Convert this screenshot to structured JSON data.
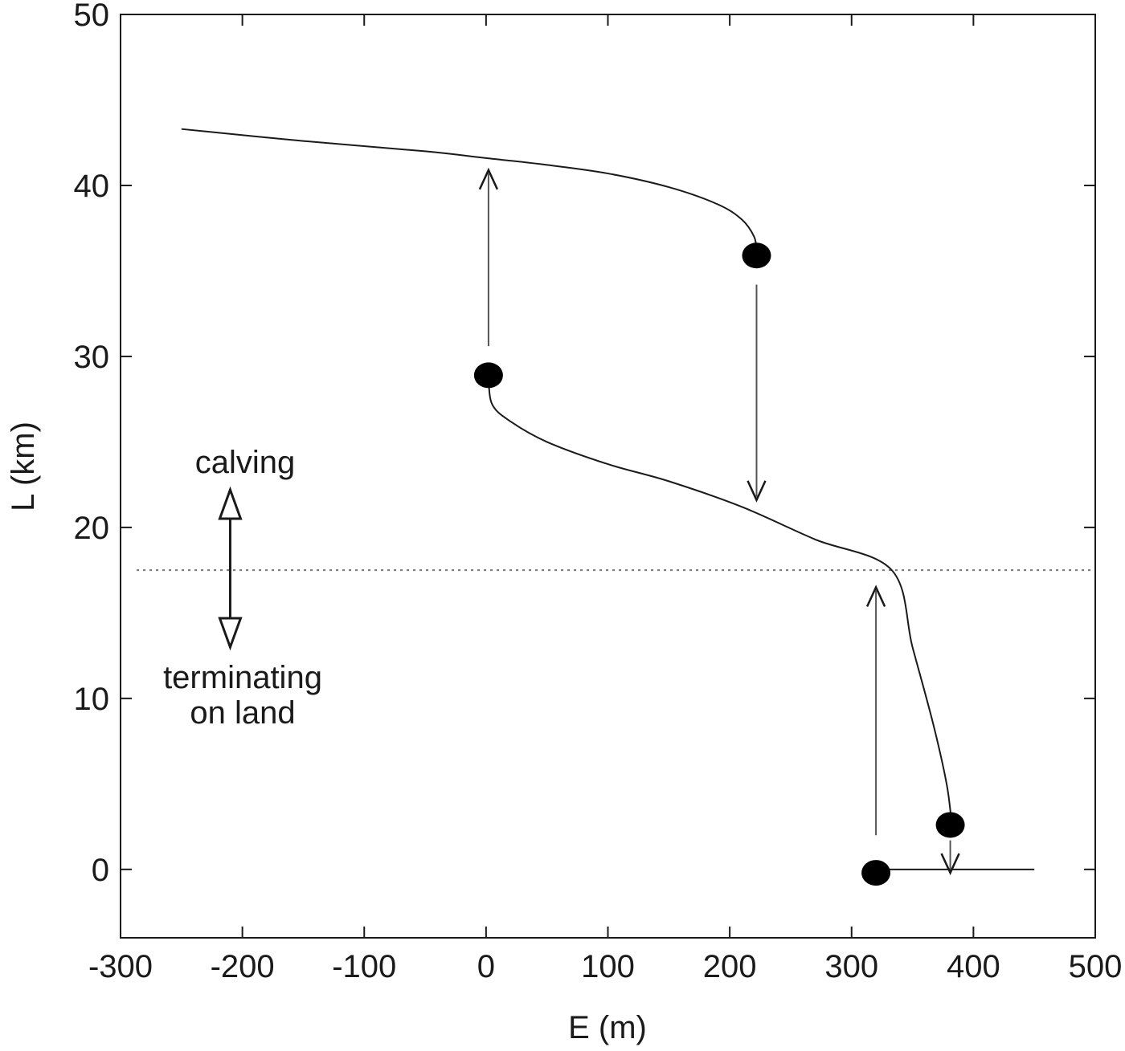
{
  "chart_data": {
    "type": "line",
    "title": "",
    "xlabel": "E (m)",
    "ylabel": "L (km)",
    "xlim": [
      -300,
      500
    ],
    "ylim": [
      -4,
      50
    ],
    "x_ticks": [
      -300,
      -200,
      -100,
      0,
      100,
      200,
      300,
      400,
      500
    ],
    "x_tick_labels": [
      "-300",
      "-200",
      "-100",
      "0",
      "100",
      "200",
      "300",
      "400",
      "500"
    ],
    "y_ticks": [
      0,
      10,
      20,
      30,
      40,
      50
    ],
    "y_tick_labels": [
      "0",
      "10",
      "20",
      "30",
      "40",
      "50"
    ],
    "grid": false,
    "series": [
      {
        "style": "solid",
        "color": "#1a1a1a",
        "points": [
          [
            -250,
            43.3
          ],
          [
            -150,
            42.6
          ],
          [
            -50,
            42.0
          ],
          [
            0,
            41.6
          ],
          [
            50,
            41.2
          ],
          [
            100,
            40.7
          ],
          [
            150,
            39.9
          ],
          [
            190,
            38.9
          ],
          [
            210,
            38.0
          ],
          [
            220,
            37.0
          ],
          [
            222,
            36.2
          ]
        ]
      },
      {
        "style": "solid",
        "color": "#1a1a1a",
        "points": [
          [
            2,
            28.8
          ],
          [
            5,
            27.2
          ],
          [
            20,
            26.2
          ],
          [
            50,
            25.0
          ],
          [
            100,
            23.7
          ],
          [
            150,
            22.7
          ],
          [
            210,
            21.2
          ],
          [
            270,
            19.3
          ],
          [
            333,
            17.5
          ],
          [
            350,
            13.0
          ],
          [
            367,
            8.5
          ],
          [
            378,
            5.0
          ],
          [
            382,
            2.8
          ]
        ]
      },
      {
        "style": "solid",
        "color": "#1a1a1a",
        "points": [
          [
            320,
            0
          ],
          [
            450,
            0
          ]
        ]
      }
    ],
    "threshold_line": {
      "y": 17.5,
      "style": "dotted",
      "color": "#777777"
    },
    "markers": [
      {
        "x": 222,
        "y": 35.9
      },
      {
        "x": 2,
        "y": 28.9
      },
      {
        "x": 381,
        "y": 2.6
      },
      {
        "x": 320,
        "y": -0.2
      }
    ],
    "arrows": [
      {
        "x": 2,
        "from_y": 30.6,
        "to_y": 40.9
      },
      {
        "x": 222,
        "from_y": 34.2,
        "to_y": 21.6
      },
      {
        "x": 320,
        "from_y": 2.0,
        "to_y": 16.5
      },
      {
        "x": 381,
        "from_y": 1.7,
        "to_y": -0.2
      }
    ],
    "annotations": {
      "upper_label": "calving",
      "lower_label_line1": "terminating",
      "lower_label_line2": "on land"
    },
    "double_arrow": {
      "x": -210,
      "from_y": 13.0,
      "to_y": 22.2
    }
  }
}
